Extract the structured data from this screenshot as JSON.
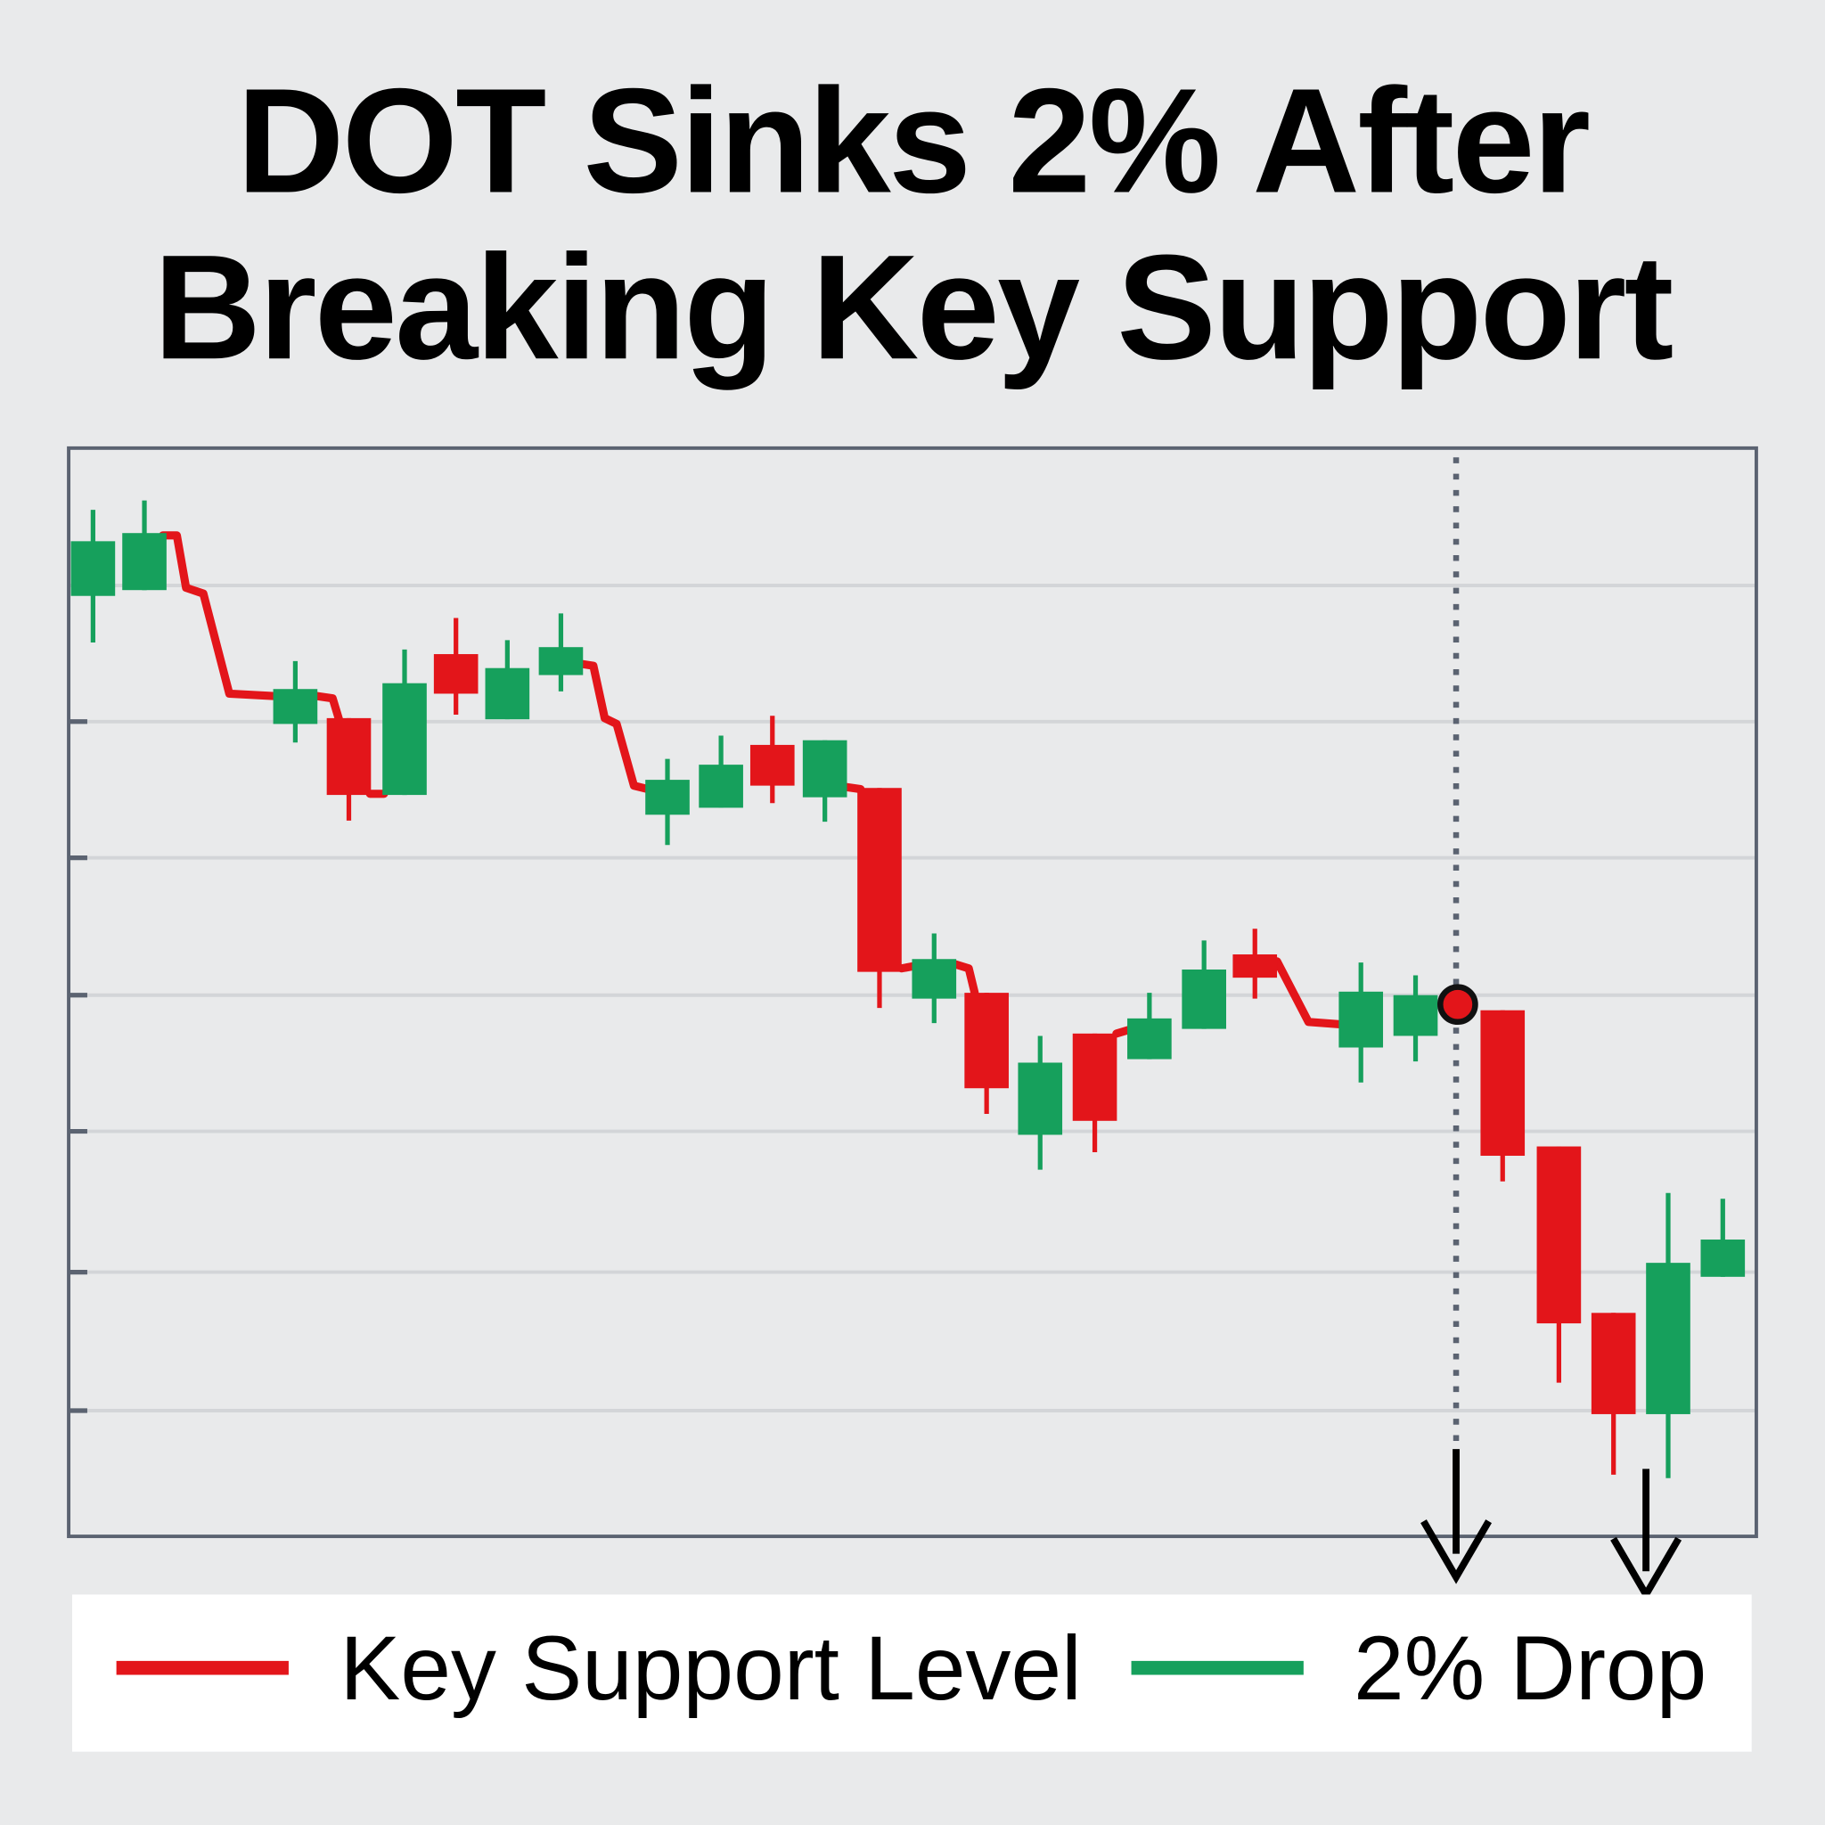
{
  "chart_data": {
    "type": "candlestick",
    "title_lines": [
      "DOT Sinks 2% After",
      "Breaking Key Support"
    ],
    "xlabel": "",
    "ylabel": "",
    "xlim": [
      -0.45,
      30.75
    ],
    "ylim": [
      8,
      101.5
    ],
    "grid": true,
    "gridlines": [
      89.7,
      78,
      66.3,
      54.5,
      42.8,
      30.7,
      18.8
    ],
    "colors": {
      "up": "#16a05c",
      "down": "#e3151a",
      "frame": "#5b6371",
      "grid": "#d3d5d8",
      "marker": "#e3151a"
    },
    "candles": [
      {
        "x": 0,
        "open": 88.8,
        "close": 93.5,
        "high": 96.2,
        "low": 84.8
      },
      {
        "x": 0.95,
        "open": 89.3,
        "close": 94.2,
        "high": 97.0,
        "low": 89.3
      },
      {
        "x": 3.74,
        "open": 77.8,
        "close": 80.8,
        "high": 83.2,
        "low": 76.2
      },
      {
        "x": 4.73,
        "open": 78.3,
        "close": 71.7,
        "high": 78.3,
        "low": 69.5
      },
      {
        "x": 5.76,
        "open": 71.7,
        "close": 81.3,
        "high": 84.2,
        "low": 71.7
      },
      {
        "x": 6.71,
        "open": 83.8,
        "close": 80.4,
        "high": 86.9,
        "low": 78.6
      },
      {
        "x": 7.66,
        "open": 78.2,
        "close": 82.6,
        "high": 85.0,
        "low": 78.2
      },
      {
        "x": 8.65,
        "open": 82.0,
        "close": 84.4,
        "high": 87.3,
        "low": 80.6
      },
      {
        "x": 10.62,
        "open": 70.0,
        "close": 73.0,
        "high": 74.8,
        "low": 67.4
      },
      {
        "x": 11.61,
        "open": 70.6,
        "close": 74.3,
        "high": 76.8,
        "low": 70.6
      },
      {
        "x": 12.56,
        "open": 76.0,
        "close": 72.5,
        "high": 78.5,
        "low": 71.0
      },
      {
        "x": 13.53,
        "open": 71.5,
        "close": 76.4,
        "high": 76.4,
        "low": 69.4
      },
      {
        "x": 14.54,
        "open": 72.3,
        "close": 56.5,
        "high": 72.3,
        "low": 53.4
      },
      {
        "x": 15.55,
        "open": 54.2,
        "close": 57.6,
        "high": 59.8,
        "low": 52.1
      },
      {
        "x": 16.52,
        "open": 54.7,
        "close": 46.5,
        "high": 54.7,
        "low": 44.3
      },
      {
        "x": 17.51,
        "open": 42.5,
        "close": 48.7,
        "high": 51.0,
        "low": 39.5
      },
      {
        "x": 18.52,
        "open": 51.2,
        "close": 43.7,
        "high": 51.2,
        "low": 41.0
      },
      {
        "x": 19.53,
        "open": 49.0,
        "close": 52.5,
        "high": 54.7,
        "low": 49.0
      },
      {
        "x": 20.54,
        "open": 51.6,
        "close": 56.7,
        "high": 59.2,
        "low": 51.6
      },
      {
        "x": 21.48,
        "open": 58.0,
        "close": 56.0,
        "high": 60.2,
        "low": 54.2
      },
      {
        "x": 23.44,
        "open": 50.0,
        "close": 54.8,
        "high": 57.3,
        "low": 47.0
      },
      {
        "x": 24.45,
        "open": 51.0,
        "close": 54.5,
        "high": 56.2,
        "low": 48.8
      },
      {
        "x": 26.06,
        "open": 53.2,
        "close": 40.7,
        "high": 53.2,
        "low": 38.5
      },
      {
        "x": 27.1,
        "open": 41.5,
        "close": 26.3,
        "high": 41.5,
        "low": 21.2
      },
      {
        "x": 28.11,
        "open": 27.2,
        "close": 18.5,
        "high": 27.2,
        "low": 13.3
      },
      {
        "x": 29.12,
        "open": 18.5,
        "close": 31.5,
        "high": 37.5,
        "low": 13.0
      },
      {
        "x": 30.13,
        "open": 30.3,
        "close": 33.5,
        "high": 37.0,
        "low": 30.3
      }
    ],
    "support_line_segments": [
      [
        [
          1.29,
          94
        ],
        [
          1.55,
          94
        ],
        [
          1.72,
          89.5
        ],
        [
          2.04,
          89
        ],
        [
          2.52,
          80.4
        ],
        [
          3.33,
          80.2
        ]
      ],
      [
        [
          4.13,
          80.2
        ],
        [
          4.43,
          80
        ],
        [
          4.56,
          78
        ]
      ],
      [
        [
          5.12,
          71.8
        ],
        [
          5.38,
          71.8
        ]
      ],
      [
        [
          8.97,
          83
        ],
        [
          9.25,
          82.8
        ],
        [
          9.46,
          78.3
        ],
        [
          9.68,
          77.8
        ],
        [
          10,
          72.5
        ],
        [
          10.26,
          72.2
        ]
      ],
      [
        [
          13.89,
          72.4
        ],
        [
          14.19,
          72.2
        ]
      ],
      [
        [
          14.95,
          56.8
        ],
        [
          15.18,
          57
        ]
      ],
      [
        [
          15.91,
          57.2
        ],
        [
          16.19,
          56.8
        ],
        [
          16.3,
          54.7
        ]
      ],
      [
        [
          18.92,
          51.2
        ],
        [
          19.14,
          51.5
        ]
      ],
      [
        [
          21.89,
          57.4
        ],
        [
          22.47,
          52.2
        ],
        [
          23.05,
          52
        ]
      ]
    ],
    "breakout_marker": {
      "x": 25.23,
      "price": 53.7
    },
    "breakout_vline_x": 25.2,
    "arrows_x": [
      25.2,
      28.71
    ],
    "legend": {
      "placement": "bottom",
      "items": [
        {
          "label": "Key Support Level",
          "color": "#e3151a"
        },
        {
          "label": "2% Drop",
          "color": "#16a05c"
        }
      ]
    }
  }
}
